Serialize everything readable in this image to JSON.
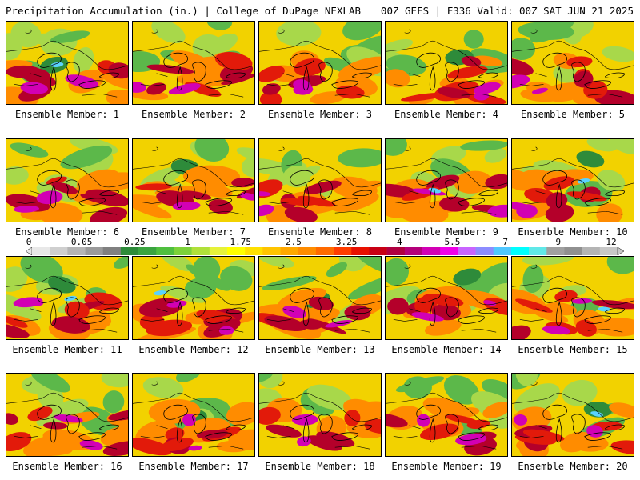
{
  "header": {
    "left": "Precipitation Accumulation (in.) | College of DuPage NEXLAB",
    "right": "00Z GEFS | F336 Valid: 00Z SAT JUN 21 2025"
  },
  "member_label_prefix": "Ensemble Member: ",
  "members": [
    "1",
    "2",
    "3",
    "4",
    "5",
    "6",
    "7",
    "8",
    "9",
    "10",
    "11",
    "12",
    "13",
    "14",
    "15",
    "16",
    "17",
    "18",
    "19",
    "20"
  ],
  "colorbar": {
    "ticks": [
      "0",
      "0.05",
      "0.25",
      "1",
      "1.75",
      "2.5",
      "3.25",
      "4",
      "5.5",
      "7",
      "9",
      "12"
    ],
    "colors": [
      "#e8e8e8",
      "#cfcfcf",
      "#b4b4b4",
      "#9a9a9a",
      "#808080",
      "#2e8b3a",
      "#3aa43f",
      "#4fbf3f",
      "#7cd23a",
      "#b0e03a",
      "#e6f23a",
      "#ffff00",
      "#ffe000",
      "#ffc400",
      "#ffa800",
      "#ff8c00",
      "#ff6a00",
      "#ff3c00",
      "#e81000",
      "#c80014",
      "#b00040",
      "#b4007a",
      "#d200b4",
      "#f000e8",
      "#c864ff",
      "#8c8cff",
      "#50c8ff",
      "#00ffff",
      "#60e8e8",
      "#a0a0a0",
      "#909090",
      "#b4b4b4",
      "#c8c8c8"
    ]
  },
  "map_palette": {
    "background": "#f2d200",
    "green": "#5cb84a",
    "dark_green": "#2e8b3a",
    "light_green": "#a8d84a",
    "orange": "#ff8c00",
    "red": "#e21a0a",
    "dark_red": "#b4002a",
    "magenta": "#d200b4",
    "cyan": "#5ad2ff",
    "outline": "#000000"
  }
}
